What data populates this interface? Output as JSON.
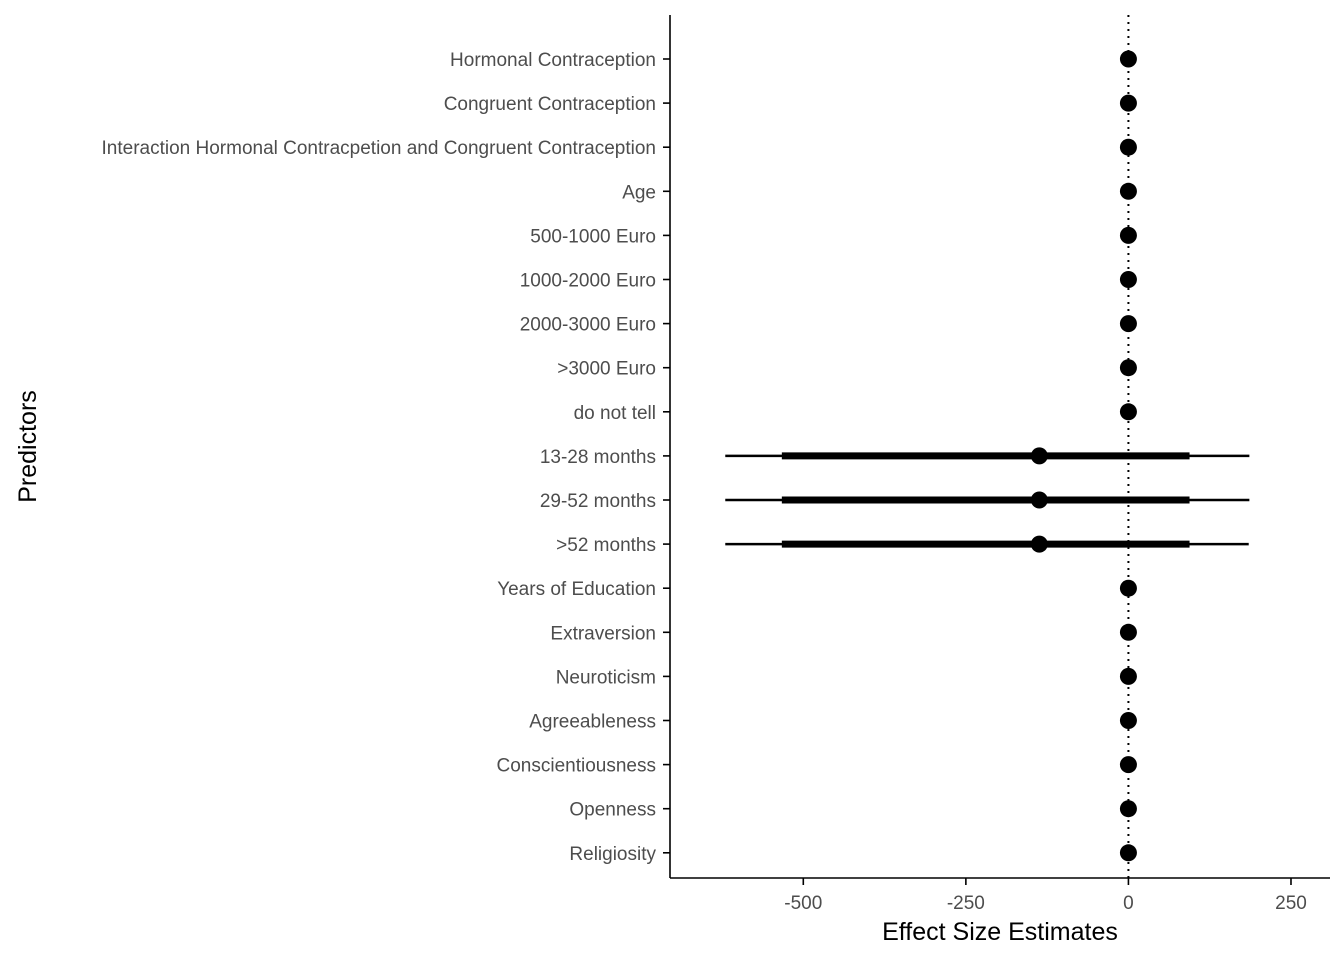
{
  "chart_data": {
    "type": "scatter",
    "subtype": "coefficient-plot-with-intervals",
    "title": "",
    "xlabel": "Effect Size Estimates",
    "ylabel": "Predictors",
    "xlim": [
      -705,
      310
    ],
    "xticks": [
      -500,
      -250,
      0,
      250
    ],
    "xtick_labels": [
      "-500",
      "-250",
      "0",
      "250"
    ],
    "reference_line": 0,
    "grid": false,
    "legend": "none",
    "colors": {
      "point": "#000000",
      "interval": "#000000",
      "reference": "#000000",
      "axis": "#000000"
    },
    "predictors": [
      {
        "label": "Hormonal Contraception",
        "estimate": 0
      },
      {
        "label": "Congruent Contraception",
        "estimate": 0
      },
      {
        "label": "Interaction Hormonal Contracpetion and Congruent Contraception",
        "estimate": 0
      },
      {
        "label": "Age",
        "estimate": 0
      },
      {
        "label": "500-1000 Euro",
        "estimate": 0
      },
      {
        "label": "1000-2000 Euro",
        "estimate": 0
      },
      {
        "label": "2000-3000 Euro",
        "estimate": 0
      },
      {
        "label": ">3000 Euro",
        "estimate": 0
      },
      {
        "label": "do not tell",
        "estimate": 0
      },
      {
        "label": "13-28 months",
        "estimate": -137,
        "inner": [
          -533,
          94
        ],
        "outer": [
          -620,
          186
        ]
      },
      {
        "label": "29-52 months",
        "estimate": -137,
        "inner": [
          -533,
          94
        ],
        "outer": [
          -620,
          186
        ]
      },
      {
        "label": ">52 months",
        "estimate": -137,
        "inner": [
          -533,
          94
        ],
        "outer": [
          -620,
          185
        ]
      },
      {
        "label": "Years of Education",
        "estimate": 0
      },
      {
        "label": "Extraversion",
        "estimate": 0
      },
      {
        "label": "Neuroticism",
        "estimate": 0
      },
      {
        "label": "Agreeableness",
        "estimate": 0
      },
      {
        "label": "Conscientiousness",
        "estimate": 0
      },
      {
        "label": "Openness",
        "estimate": 0
      },
      {
        "label": "Religiosity",
        "estimate": 0
      }
    ]
  }
}
